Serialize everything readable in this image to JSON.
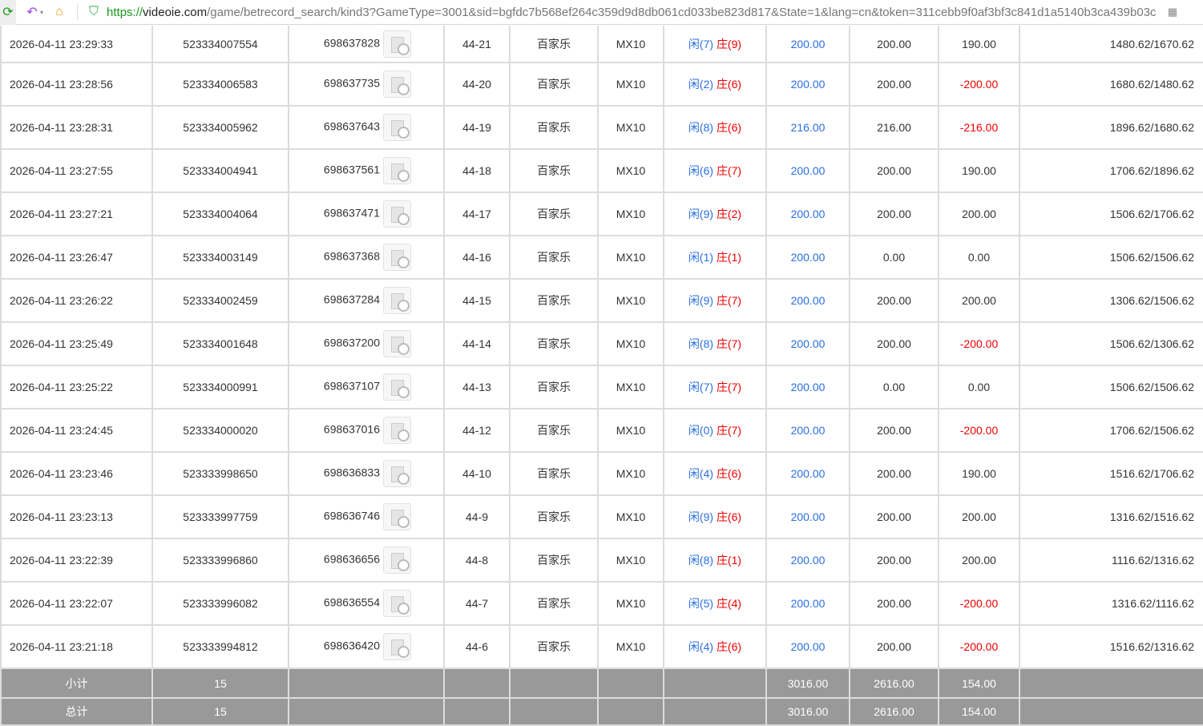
{
  "browser": {
    "url_scheme": "https://",
    "url_host": "videoie.com",
    "url_path": "/game/betrecord_search/kind3?GameType=3001&sid=bgfdc7b568ef264c359d9d8db061cd033be823d817&State=1&lang=cn&token=311cebb9f0af3bf3c841d1a5140b3ca439b03c"
  },
  "colors": {
    "player": "#2a6fe0",
    "banker": "#e00000",
    "loss": "#e00000",
    "summary_bg": "#999999"
  },
  "rows": [
    {
      "time": "2026-04-11 23:29:33",
      "bet_id": "523334007554",
      "game_id": "698637828",
      "round": "44-21",
      "game": "百家乐",
      "table": "MX10",
      "player": "闲(7)",
      "banker": "庄(9)",
      "bet": "200.00",
      "valid": "200.00",
      "result": "190.00",
      "neg": false,
      "balance": "1480.62/1670.62"
    },
    {
      "time": "2026-04-11 23:28:56",
      "bet_id": "523334006583",
      "game_id": "698637735",
      "round": "44-20",
      "game": "百家乐",
      "table": "MX10",
      "player": "闲(2)",
      "banker": "庄(6)",
      "bet": "200.00",
      "valid": "200.00",
      "result": "-200.00",
      "neg": true,
      "balance": "1680.62/1480.62"
    },
    {
      "time": "2026-04-11 23:28:31",
      "bet_id": "523334005962",
      "game_id": "698637643",
      "round": "44-19",
      "game": "百家乐",
      "table": "MX10",
      "player": "闲(8)",
      "banker": "庄(6)",
      "bet": "216.00",
      "valid": "216.00",
      "result": "-216.00",
      "neg": true,
      "balance": "1896.62/1680.62"
    },
    {
      "time": "2026-04-11 23:27:55",
      "bet_id": "523334004941",
      "game_id": "698637561",
      "round": "44-18",
      "game": "百家乐",
      "table": "MX10",
      "player": "闲(6)",
      "banker": "庄(7)",
      "bet": "200.00",
      "valid": "200.00",
      "result": "190.00",
      "neg": false,
      "balance": "1706.62/1896.62"
    },
    {
      "time": "2026-04-11 23:27:21",
      "bet_id": "523334004064",
      "game_id": "698637471",
      "round": "44-17",
      "game": "百家乐",
      "table": "MX10",
      "player": "闲(9)",
      "banker": "庄(2)",
      "bet": "200.00",
      "valid": "200.00",
      "result": "200.00",
      "neg": false,
      "balance": "1506.62/1706.62"
    },
    {
      "time": "2026-04-11 23:26:47",
      "bet_id": "523334003149",
      "game_id": "698637368",
      "round": "44-16",
      "game": "百家乐",
      "table": "MX10",
      "player": "闲(1)",
      "banker": "庄(1)",
      "bet": "200.00",
      "valid": "0.00",
      "result": "0.00",
      "neg": false,
      "balance": "1506.62/1506.62"
    },
    {
      "time": "2026-04-11 23:26:22",
      "bet_id": "523334002459",
      "game_id": "698637284",
      "round": "44-15",
      "game": "百家乐",
      "table": "MX10",
      "player": "闲(9)",
      "banker": "庄(7)",
      "bet": "200.00",
      "valid": "200.00",
      "result": "200.00",
      "neg": false,
      "balance": "1306.62/1506.62"
    },
    {
      "time": "2026-04-11 23:25:49",
      "bet_id": "523334001648",
      "game_id": "698637200",
      "round": "44-14",
      "game": "百家乐",
      "table": "MX10",
      "player": "闲(8)",
      "banker": "庄(7)",
      "bet": "200.00",
      "valid": "200.00",
      "result": "-200.00",
      "neg": true,
      "balance": "1506.62/1306.62"
    },
    {
      "time": "2026-04-11 23:25:22",
      "bet_id": "523334000991",
      "game_id": "698637107",
      "round": "44-13",
      "game": "百家乐",
      "table": "MX10",
      "player": "闲(7)",
      "banker": "庄(7)",
      "bet": "200.00",
      "valid": "0.00",
      "result": "0.00",
      "neg": false,
      "balance": "1506.62/1506.62"
    },
    {
      "time": "2026-04-11 23:24:45",
      "bet_id": "523334000020",
      "game_id": "698637016",
      "round": "44-12",
      "game": "百家乐",
      "table": "MX10",
      "player": "闲(0)",
      "banker": "庄(7)",
      "bet": "200.00",
      "valid": "200.00",
      "result": "-200.00",
      "neg": true,
      "balance": "1706.62/1506.62"
    },
    {
      "time": "2026-04-11 23:23:46",
      "bet_id": "523333998650",
      "game_id": "698636833",
      "round": "44-10",
      "game": "百家乐",
      "table": "MX10",
      "player": "闲(4)",
      "banker": "庄(6)",
      "bet": "200.00",
      "valid": "200.00",
      "result": "190.00",
      "neg": false,
      "balance": "1516.62/1706.62"
    },
    {
      "time": "2026-04-11 23:23:13",
      "bet_id": "523333997759",
      "game_id": "698636746",
      "round": "44-9",
      "game": "百家乐",
      "table": "MX10",
      "player": "闲(9)",
      "banker": "庄(6)",
      "bet": "200.00",
      "valid": "200.00",
      "result": "200.00",
      "neg": false,
      "balance": "1316.62/1516.62"
    },
    {
      "time": "2026-04-11 23:22:39",
      "bet_id": "523333996860",
      "game_id": "698636656",
      "round": "44-8",
      "game": "百家乐",
      "table": "MX10",
      "player": "闲(8)",
      "banker": "庄(1)",
      "bet": "200.00",
      "valid": "200.00",
      "result": "200.00",
      "neg": false,
      "balance": "1116.62/1316.62"
    },
    {
      "time": "2026-04-11 23:22:07",
      "bet_id": "523333996082",
      "game_id": "698636554",
      "round": "44-7",
      "game": "百家乐",
      "table": "MX10",
      "player": "闲(5)",
      "banker": "庄(4)",
      "bet": "200.00",
      "valid": "200.00",
      "result": "-200.00",
      "neg": true,
      "balance": "1316.62/1116.62"
    },
    {
      "time": "2026-04-11 23:21:18",
      "bet_id": "523333994812",
      "game_id": "698636420",
      "round": "44-6",
      "game": "百家乐",
      "table": "MX10",
      "player": "闲(4)",
      "banker": "庄(6)",
      "bet": "200.00",
      "valid": "200.00",
      "result": "-200.00",
      "neg": true,
      "balance": "1516.62/1316.62"
    }
  ],
  "subtotal": {
    "label": "小计",
    "count": "15",
    "bet": "3016.00",
    "valid": "2616.00",
    "result": "154.00"
  },
  "total": {
    "label": "总计",
    "count": "15",
    "bet": "3016.00",
    "valid": "2616.00",
    "result": "154.00"
  }
}
